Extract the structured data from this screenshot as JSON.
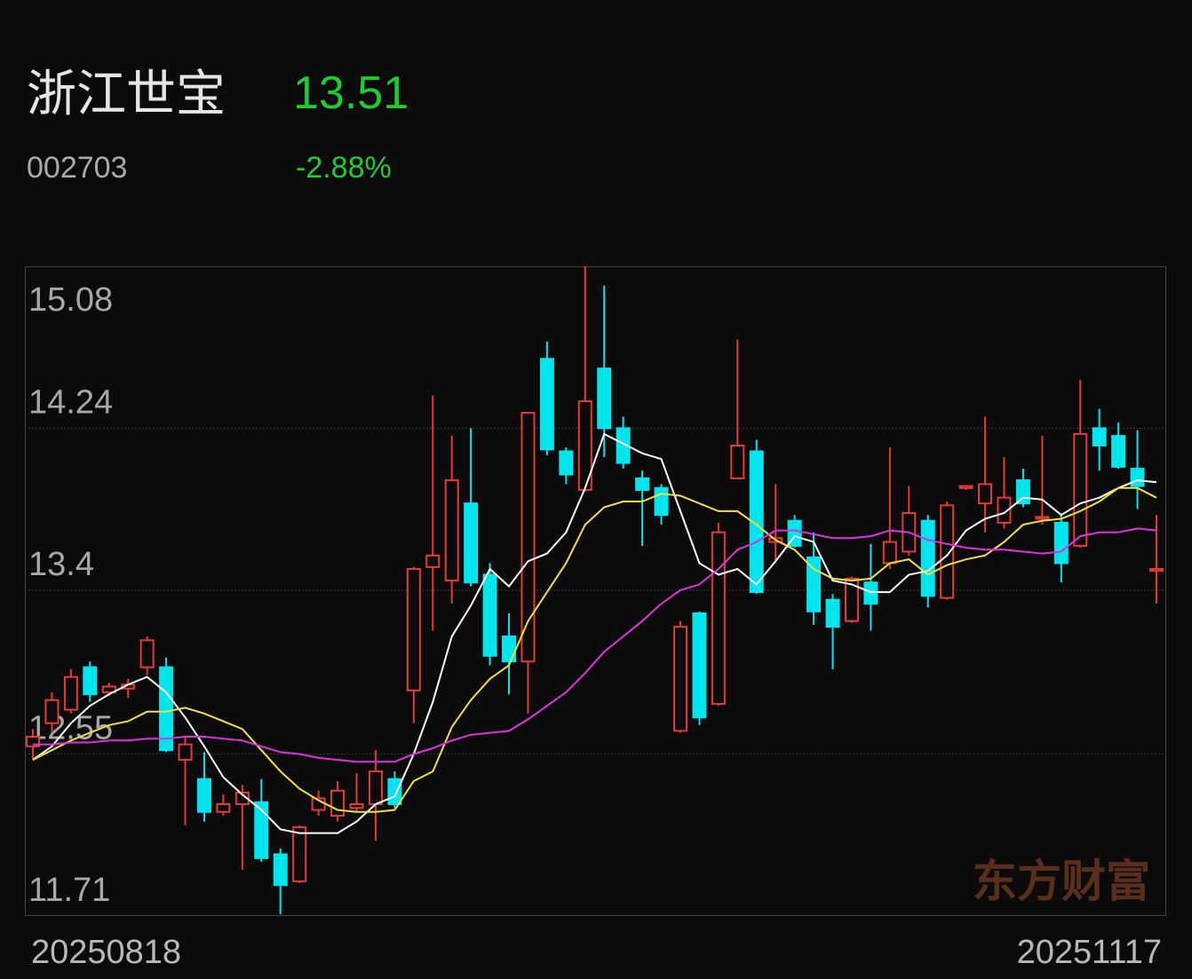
{
  "header": {
    "name": "浙江世宝",
    "price": "13.51",
    "code": "002703",
    "change": "-2.88%"
  },
  "watermark": "东方财富",
  "chart_data": {
    "type": "candlestick",
    "categories": [
      "20250818",
      null,
      null,
      null,
      null,
      null,
      null,
      null,
      null,
      null,
      null,
      null,
      null,
      null,
      null,
      null,
      null,
      null,
      null,
      null,
      null,
      null,
      null,
      null,
      null,
      null,
      null,
      null,
      null,
      null,
      null,
      null,
      null,
      null,
      null,
      null,
      null,
      null,
      null,
      null,
      null,
      null,
      null,
      null,
      null,
      null,
      null,
      null,
      null,
      null,
      null,
      null,
      null,
      null,
      null,
      null,
      null,
      null,
      null,
      "20251117"
    ],
    "open": [
      12.59,
      12.71,
      12.78,
      13.0,
      12.87,
      12.89,
      13.0,
      13.0,
      12.52,
      12.42,
      12.25,
      12.29,
      12.3,
      12.03,
      11.89,
      12.26,
      12.23,
      12.27,
      12.29,
      12.42,
      12.88,
      13.52,
      13.45,
      13.85,
      13.48,
      13.16,
      13.03,
      14.6,
      14.12,
      13.92,
      14.55,
      14.24,
      13.98,
      13.93,
      12.67,
      13.28,
      12.81,
      13.98,
      14.12,
      13.65,
      13.76,
      13.57,
      13.35,
      13.24,
      13.44,
      13.54,
      13.6,
      13.76,
      13.36,
      13.93,
      13.85,
      13.75,
      13.97,
      13.77,
      13.75,
      13.63,
      14.24,
      14.2,
      14.03,
      13.5
    ],
    "high": [
      12.68,
      12.87,
      12.99,
      13.03,
      12.92,
      12.94,
      13.16,
      13.05,
      12.64,
      12.56,
      12.34,
      12.39,
      12.42,
      12.06,
      12.18,
      12.36,
      12.41,
      12.45,
      12.57,
      12.46,
      13.52,
      14.41,
      14.2,
      14.24,
      13.54,
      13.28,
      14.32,
      14.69,
      14.14,
      15.08,
      14.98,
      14.3,
      14.02,
      13.95,
      13.24,
      13.29,
      13.75,
      14.7,
      14.18,
      13.95,
      13.79,
      13.7,
      13.38,
      13.47,
      13.64,
      14.14,
      13.94,
      13.79,
      13.86,
      13.94,
      14.3,
      14.09,
      14.03,
      14.2,
      13.8,
      14.49,
      14.34,
      14.27,
      14.23,
      13.79
    ],
    "low": [
      12.52,
      12.66,
      12.76,
      12.82,
      12.85,
      12.84,
      12.96,
      12.56,
      12.18,
      12.2,
      12.23,
      11.95,
      11.99,
      11.72,
      11.88,
      12.23,
      12.2,
      12.25,
      12.1,
      12.27,
      12.71,
      13.19,
      13.33,
      13.42,
      13.01,
      12.86,
      12.76,
      14.1,
      13.95,
      13.91,
      14.09,
      14.03,
      13.63,
      13.74,
      12.66,
      12.7,
      12.8,
      13.98,
      13.38,
      13.54,
      13.62,
      13.22,
      12.99,
      13.23,
      13.19,
      13.51,
      13.58,
      13.31,
      13.35,
      13.92,
      13.7,
      13.72,
      13.83,
      13.74,
      13.44,
      13.62,
      14.02,
      14.03,
      13.82,
      13.33
    ],
    "close": [
      12.64,
      12.83,
      12.95,
      12.86,
      12.9,
      12.91,
      13.14,
      12.57,
      12.6,
      12.25,
      12.29,
      12.35,
      12.01,
      11.87,
      12.17,
      12.32,
      12.36,
      12.29,
      12.46,
      12.29,
      13.51,
      13.58,
      13.97,
      13.44,
      13.06,
      13.03,
      14.32,
      14.13,
      14.0,
      14.38,
      14.24,
      14.06,
      13.92,
      13.79,
      13.21,
      12.74,
      13.7,
      14.15,
      13.39,
      13.67,
      13.63,
      13.29,
      13.21,
      13.46,
      13.33,
      13.65,
      13.8,
      13.37,
      13.84,
      13.94,
      13.95,
      13.88,
      13.85,
      13.78,
      13.54,
      14.21,
      14.15,
      14.04,
      13.94,
      13.51
    ],
    "up_color": "#e53935",
    "down_color": "#00e5ee",
    "lines": [
      {
        "color": "#ffffff",
        "values": [
          12.52,
          12.59,
          12.71,
          12.8,
          12.86,
          12.91,
          12.95,
          12.87,
          12.74,
          12.59,
          12.43,
          12.34,
          12.26,
          12.16,
          12.14,
          12.14,
          12.14,
          12.2,
          12.29,
          12.33,
          12.55,
          12.82,
          13.16,
          13.32,
          13.51,
          13.42,
          13.55,
          13.59,
          13.7,
          13.93,
          14.21,
          14.16,
          14.11,
          14.08,
          13.81,
          13.54,
          13.48,
          13.51,
          13.43,
          13.55,
          13.68,
          13.65,
          13.45,
          13.43,
          13.39,
          13.39,
          13.48,
          13.5,
          13.58,
          13.71,
          13.77,
          13.8,
          13.88,
          13.87,
          13.79,
          13.85,
          13.88,
          13.93,
          13.97,
          13.96
        ]
      },
      {
        "color": "#f5e03a",
        "values": [
          12.52,
          12.57,
          12.62,
          12.66,
          12.7,
          12.72,
          12.77,
          12.77,
          12.79,
          12.76,
          12.72,
          12.68,
          12.57,
          12.46,
          12.37,
          12.31,
          12.26,
          12.25,
          12.25,
          12.26,
          12.41,
          12.46,
          12.69,
          12.83,
          12.94,
          13.01,
          13.24,
          13.39,
          13.54,
          13.74,
          13.83,
          13.86,
          13.86,
          13.9,
          13.89,
          13.85,
          13.81,
          13.81,
          13.74,
          13.66,
          13.61,
          13.51,
          13.46,
          13.45,
          13.46,
          13.54,
          13.56,
          13.48,
          13.53,
          13.56,
          13.58,
          13.65,
          13.74,
          13.76,
          13.77,
          13.81,
          13.86,
          13.93,
          13.93,
          13.88
        ]
      },
      {
        "color": "#e030e0",
        "values": [
          12.6,
          12.6,
          12.61,
          12.61,
          12.62,
          12.62,
          12.63,
          12.63,
          12.64,
          12.64,
          12.63,
          12.62,
          12.59,
          12.56,
          12.55,
          12.53,
          12.52,
          12.51,
          12.51,
          12.51,
          12.55,
          12.58,
          12.62,
          12.65,
          12.66,
          12.67,
          12.73,
          12.8,
          12.87,
          12.97,
          13.08,
          13.16,
          13.24,
          13.33,
          13.4,
          13.43,
          13.51,
          13.61,
          13.65,
          13.71,
          13.71,
          13.69,
          13.67,
          13.67,
          13.68,
          13.71,
          13.7,
          13.66,
          13.64,
          13.62,
          13.61,
          13.61,
          13.6,
          13.59,
          13.6,
          13.68,
          13.7,
          13.7,
          13.72,
          13.71
        ]
      }
    ],
    "ylim": [
      11.71,
      15.08
    ],
    "yticks": [
      15.08,
      14.24,
      13.4,
      {
        "value": 12.55,
        "label": "12.55"
      },
      11.71
    ],
    "grid": true
  }
}
